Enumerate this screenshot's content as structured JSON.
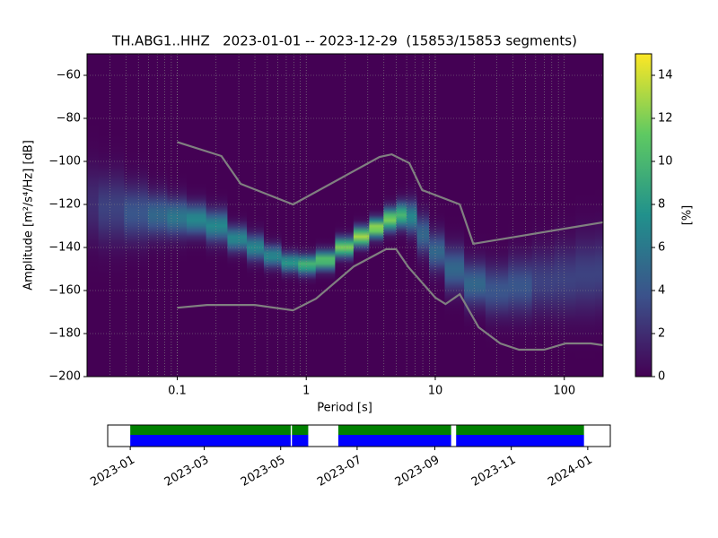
{
  "chart_data": [
    {
      "type": "heatmap",
      "title": "TH.ABG1..HHZ   2023-01-01 -- 2023-12-29  (15853/15853 segments)",
      "x_label": "Period [s]",
      "y_label": "Amplitude [m²/s⁴/Hz] [dB]",
      "xscale": "log",
      "xlim": [
        0.02,
        200
      ],
      "xticks": [
        0.1,
        1,
        10,
        100
      ],
      "ylim": [
        -200,
        -50
      ],
      "yticks": [
        {
          "value": -200,
          "label": "−200"
        },
        {
          "value": -180,
          "label": "−180"
        },
        {
          "value": -160,
          "label": "−160"
        },
        {
          "value": -140,
          "label": "−140"
        },
        {
          "value": -120,
          "label": "−120"
        },
        {
          "value": -100,
          "label": "−100"
        },
        {
          "value": -80,
          "label": "−80"
        },
        {
          "value": -60,
          "label": "−60"
        }
      ],
      "grid": true,
      "background": "#440154",
      "heatmap": {
        "periods": [
          0.02,
          0.03,
          0.05,
          0.07,
          0.1,
          0.14,
          0.2,
          0.3,
          0.4,
          0.55,
          0.75,
          1,
          1.4,
          2,
          2.7,
          3.5,
          4.5,
          5.5,
          6.5,
          8,
          10,
          14,
          20,
          30,
          45,
          70,
          100,
          150,
          200
        ],
        "mode": [
          -120,
          -122,
          -124,
          -125,
          -126,
          -127,
          -130,
          -136,
          -140,
          -144,
          -147,
          -148,
          -146,
          -140,
          -135,
          -131,
          -127,
          -125,
          -126,
          -134,
          -142,
          -150,
          -157,
          -160,
          -158,
          -156,
          -155,
          -153,
          -152
        ],
        "spread": [
          12,
          11,
          9,
          7,
          6,
          5,
          5,
          4,
          4,
          3.5,
          3,
          3,
          3,
          3,
          3,
          3,
          3.5,
          4,
          5,
          6,
          6,
          7,
          7,
          8,
          9,
          10,
          11,
          12,
          12
        ],
        "peak": [
          2,
          3,
          4,
          5,
          6,
          7,
          7,
          7,
          7,
          7,
          8,
          10,
          11,
          12,
          13,
          13,
          12,
          10,
          7,
          5,
          5,
          5,
          5,
          4,
          4,
          3,
          3,
          3,
          3
        ]
      },
      "lines": [
        {
          "color": "#808080",
          "x": [
            0.1,
            0.22,
            0.31,
            0.79,
            3.7,
            4.6,
            6.3,
            7.9,
            15.5,
            19.7,
            200
          ],
          "values": [
            -91,
            -97.5,
            -110.4,
            -120,
            -97.9,
            -96.7,
            -100.8,
            -113.3,
            -120,
            -138.3,
            -128.3
          ]
        },
        {
          "color": "#808080",
          "x": [
            0.1,
            0.17,
            0.4,
            0.79,
            1.19,
            2.34,
            4.16,
            4.97,
            6.21,
            10,
            12,
            15.5,
            21.7,
            31.9,
            44.6,
            69.8,
            102.6,
            160.7,
            200
          ],
          "values": [
            -168,
            -166.7,
            -166.7,
            -169.2,
            -163.8,
            -148.8,
            -140.8,
            -140.8,
            -149.2,
            -163.3,
            -166.3,
            -161.7,
            -177.1,
            -184.6,
            -187.5,
            -187.5,
            -184.6,
            -184.6,
            -185.4
          ]
        }
      ],
      "colorbar": {
        "label": "[%]",
        "lim": [
          0,
          15
        ],
        "ticks": [
          0,
          2,
          4,
          6,
          8,
          10,
          12,
          14
        ]
      }
    },
    {
      "type": "timeline",
      "xlim": [
        "2022-12-14",
        "2024-01-19"
      ],
      "xticks": [
        "2023-01",
        "2023-03",
        "2023-05",
        "2023-07",
        "2023-09",
        "2023-11",
        "2024-01"
      ],
      "colors": [
        "#008000",
        "#0000ff"
      ],
      "segments": [
        {
          "start": "2023-01-01",
          "end": "2023-05-09"
        },
        {
          "start": "2023-05-10",
          "end": "2023-05-23"
        },
        {
          "start": "2023-06-16",
          "end": "2023-09-14"
        },
        {
          "start": "2023-09-18",
          "end": "2023-12-29"
        }
      ]
    }
  ]
}
